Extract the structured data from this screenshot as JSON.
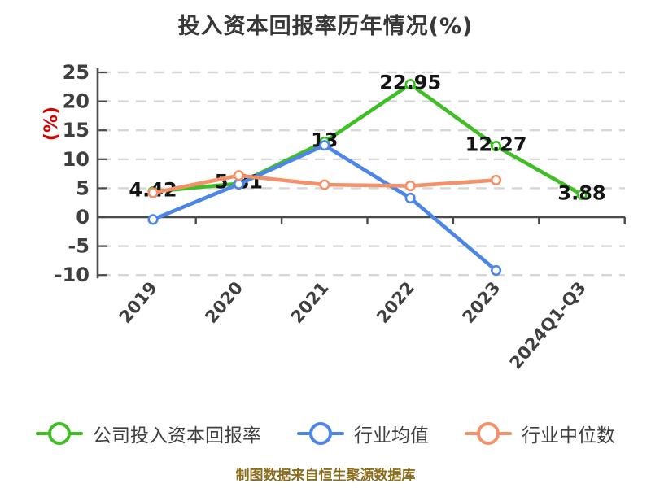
{
  "title": "投入资本回报率历年情况(%)",
  "y_axis": {
    "unit_label": "(%)",
    "unit_color": "#d40000",
    "ticks": [
      25,
      20,
      15,
      10,
      5,
      0,
      -5,
      -10
    ]
  },
  "chart_data": {
    "type": "line",
    "title": "投入资本回报率历年情况(%)",
    "xlabel": "",
    "ylabel": "(%)",
    "ylim": [
      -10,
      25
    ],
    "grid": "horizontal dashed",
    "legend_position": "bottom",
    "categories": [
      "2019",
      "2020",
      "2021",
      "2022",
      "2023",
      "2024Q1-Q3"
    ],
    "series": [
      {
        "key": "company-roic",
        "name": "公司投入资本回报率",
        "color": "#3fbe26",
        "values": [
          4.42,
          5.81,
          13,
          22.95,
          12.27,
          3.88
        ],
        "labels": [
          "4.42",
          "5.81",
          "13",
          "22.95",
          "12.27",
          "3.88"
        ]
      },
      {
        "key": "industry-mean",
        "name": "行业均值",
        "color": "#4d86e6",
        "values": [
          -0.4,
          5.7,
          12.4,
          3.3,
          -9.2,
          null
        ],
        "labels": null
      },
      {
        "key": "industry-median",
        "name": "行业中位数",
        "color": "#f3926a",
        "values": [
          4.2,
          7.2,
          5.6,
          5.4,
          6.4,
          null
        ],
        "labels": null
      }
    ]
  },
  "legend": {
    "items": [
      {
        "label": "公司投入资本回报率",
        "color": "#3fbe26"
      },
      {
        "label": "行业均值",
        "color": "#4d86e6"
      },
      {
        "label": "行业中位数",
        "color": "#f3926a"
      }
    ]
  },
  "caption": {
    "text": "制图数据来自恒生聚源数据库",
    "color": "#8c6e1e"
  },
  "colors": {
    "axis": "#4a4a4a",
    "grid": "#d6d6d6",
    "tick_text": "#3f3f3f",
    "data_label_text": "#141414",
    "title_text": "#383838",
    "background": "#ffffff"
  }
}
